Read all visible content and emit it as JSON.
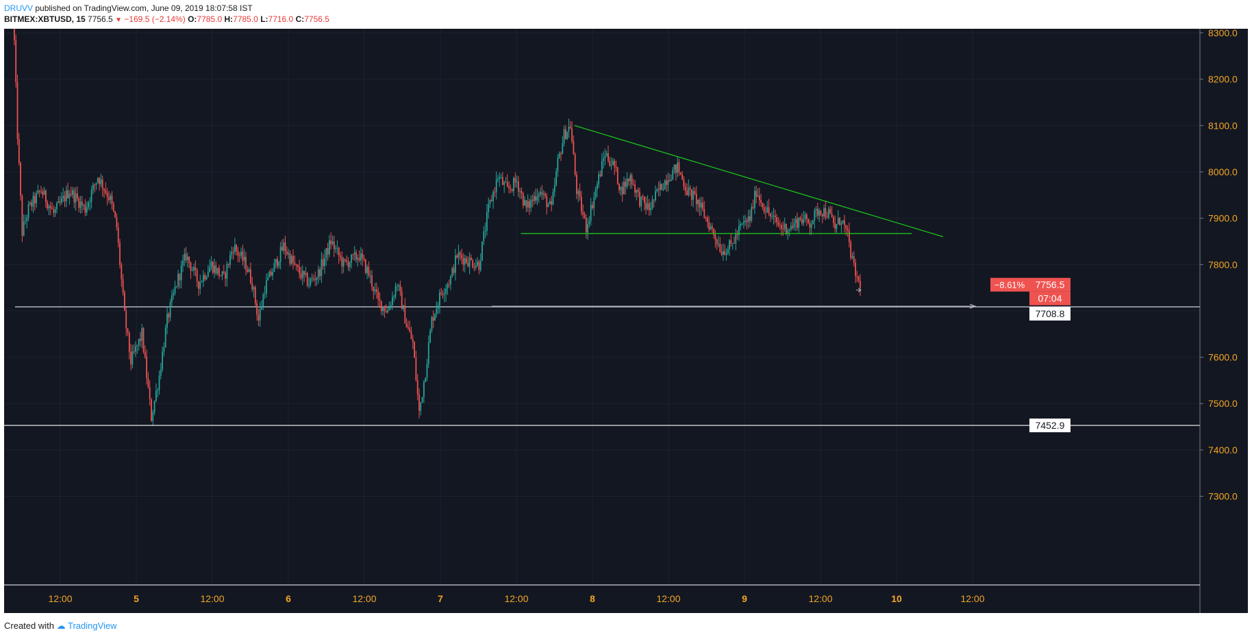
{
  "header": {
    "author": "DRUVV",
    "published_text": "published on TradingView.com, June 09, 2019 18:07:58 IST",
    "symbol": "BITMEX:XBTUSD, 15",
    "last": "7756.5",
    "change": "−169.5 (−2.14%)",
    "open_label": "O:",
    "open": "7785.0",
    "high_label": "H:",
    "high": "7785.0",
    "low_label": "L:",
    "low": "7716.0",
    "close_label": "C:",
    "close": "7756.5"
  },
  "footer": {
    "created_with": "Created with",
    "brand": "TradingView"
  },
  "colors": {
    "background": "#131722",
    "up": "#26a69a",
    "down": "#ef5350",
    "axis_text": "#f5a623",
    "trendline": "#1bc41b",
    "label_red": "#ef5350"
  },
  "price_axis": {
    "ticks": [
      "8300.0",
      "8200.0",
      "8100.0",
      "8000.0",
      "7900.0",
      "7800.0",
      "7600.0",
      "7500.0",
      "7400.0",
      "7300.0"
    ],
    "current_price_label": "7756.5",
    "percent_label": "−8.61%",
    "countdown_label": "07:04",
    "line_label_1": "7708.8",
    "line_label_2": "7452.9"
  },
  "time_axis": {
    "labels": [
      "12:00",
      "5",
      "12:00",
      "6",
      "12:00",
      "7",
      "12:00",
      "8",
      "12:00",
      "9",
      "12:00",
      "10",
      "12:00"
    ]
  },
  "chart_data": {
    "type": "candlestick",
    "ylim": [
      7250,
      8350
    ],
    "horizontal_lines": [
      7708.8,
      7452.9
    ],
    "keypoints": [
      [
        0,
        8380
      ],
      [
        1,
        8280
      ],
      [
        3,
        8080
      ],
      [
        6,
        7870
      ],
      [
        10,
        7920
      ],
      [
        18,
        7960
      ],
      [
        26,
        7910
      ],
      [
        36,
        7960
      ],
      [
        46,
        7920
      ],
      [
        54,
        7990
      ],
      [
        62,
        7940
      ],
      [
        66,
        7880
      ],
      [
        71,
        7690
      ],
      [
        75,
        7590
      ],
      [
        82,
        7650
      ],
      [
        88,
        7470
      ],
      [
        93,
        7560
      ],
      [
        98,
        7680
      ],
      [
        104,
        7760
      ],
      [
        110,
        7820
      ],
      [
        118,
        7760
      ],
      [
        126,
        7800
      ],
      [
        134,
        7770
      ],
      [
        140,
        7840
      ],
      [
        148,
        7800
      ],
      [
        152,
        7760
      ],
      [
        156,
        7680
      ],
      [
        160,
        7750
      ],
      [
        164,
        7780
      ],
      [
        172,
        7840
      ],
      [
        180,
        7790
      ],
      [
        188,
        7760
      ],
      [
        194,
        7780
      ],
      [
        202,
        7850
      ],
      [
        210,
        7800
      ],
      [
        220,
        7820
      ],
      [
        226,
        7780
      ],
      [
        232,
        7720
      ],
      [
        238,
        7700
      ],
      [
        244,
        7760
      ],
      [
        250,
        7670
      ],
      [
        254,
        7630
      ],
      [
        258,
        7480
      ],
      [
        262,
        7570
      ],
      [
        266,
        7680
      ],
      [
        272,
        7740
      ],
      [
        278,
        7770
      ],
      [
        282,
        7820
      ],
      [
        288,
        7810
      ],
      [
        296,
        7800
      ],
      [
        302,
        7920
      ],
      [
        308,
        7990
      ],
      [
        314,
        7960
      ],
      [
        320,
        7980
      ],
      [
        326,
        7920
      ],
      [
        334,
        7960
      ],
      [
        342,
        7920
      ],
      [
        346,
        8020
      ],
      [
        350,
        8080
      ],
      [
        354,
        8100
      ],
      [
        358,
        7960
      ],
      [
        364,
        7880
      ],
      [
        370,
        7960
      ],
      [
        376,
        8040
      ],
      [
        382,
        8010
      ],
      [
        386,
        7960
      ],
      [
        392,
        7990
      ],
      [
        398,
        7940
      ],
      [
        404,
        7920
      ],
      [
        410,
        7960
      ],
      [
        416,
        7990
      ],
      [
        422,
        8010
      ],
      [
        428,
        7960
      ],
      [
        434,
        7940
      ],
      [
        440,
        7900
      ],
      [
        446,
        7860
      ],
      [
        450,
        7830
      ],
      [
        456,
        7840
      ],
      [
        462,
        7880
      ],
      [
        468,
        7900
      ],
      [
        472,
        7960
      ],
      [
        476,
        7930
      ],
      [
        482,
        7900
      ],
      [
        488,
        7880
      ],
      [
        494,
        7880
      ],
      [
        500,
        7900
      ],
      [
        506,
        7890
      ],
      [
        512,
        7920
      ],
      [
        518,
        7910
      ],
      [
        522,
        7880
      ],
      [
        526,
        7900
      ],
      [
        530,
        7860
      ],
      [
        534,
        7790
      ],
      [
        537,
        7760
      ]
    ],
    "annotations": [
      {
        "kind": "descending-trendline",
        "from": [
          356,
          8100
        ],
        "to[]": [],
        "to": [
          590,
          7860
        ]
      },
      {
        "kind": "support-line",
        "from": [
          322,
          7867
        ],
        "to": [
          570,
          7867
        ]
      },
      {
        "kind": "arrow",
        "at_price": 7710
      }
    ]
  }
}
